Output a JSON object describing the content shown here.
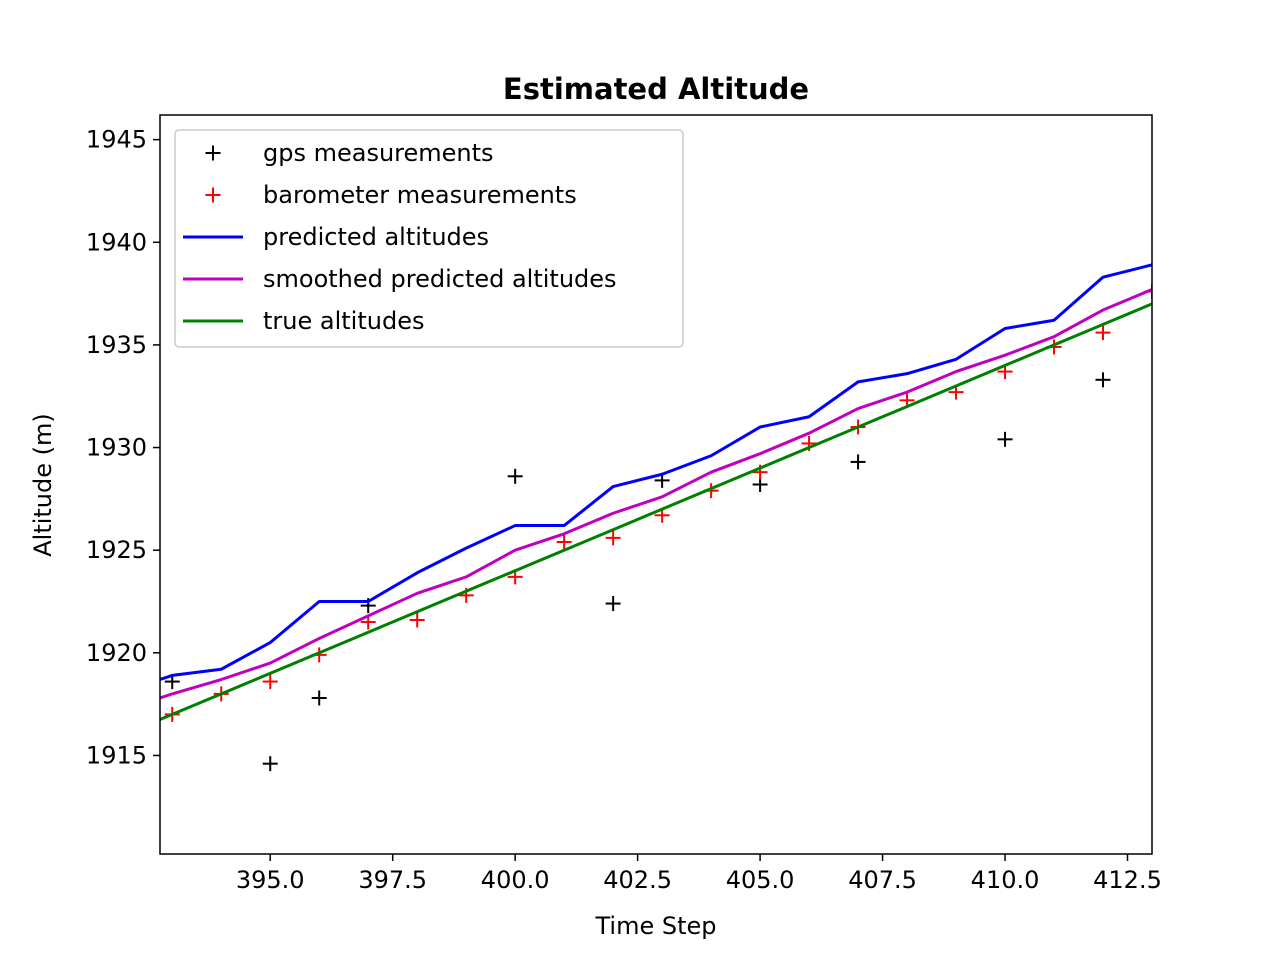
{
  "chart_data": {
    "type": "line",
    "title": "Estimated Altitude",
    "xlabel": "Time Step",
    "ylabel": "Altitude (m)",
    "xlim": [
      392.75,
      413.0
    ],
    "ylim": [
      1910.2,
      1946.2
    ],
    "xticks": [
      395.0,
      397.5,
      400.0,
      402.5,
      405.0,
      407.5,
      410.0,
      412.5
    ],
    "xtick_labels": [
      "395.0",
      "397.5",
      "400.0",
      "402.5",
      "405.0",
      "407.5",
      "410.0",
      "412.5"
    ],
    "yticks": [
      1915,
      1920,
      1925,
      1930,
      1935,
      1940,
      1945
    ],
    "ytick_labels": [
      "1915",
      "1920",
      "1925",
      "1930",
      "1935",
      "1940",
      "1945"
    ],
    "grid": false,
    "legend_position": "upper-left",
    "series": [
      {
        "name": "gps measurements",
        "kind": "marker",
        "color": "#000000",
        "x": [
          393,
          395,
          396,
          397,
          400,
          402,
          403,
          405,
          407,
          410,
          412
        ],
        "y": [
          1918.6,
          1914.6,
          1917.8,
          1922.3,
          1928.6,
          1922.4,
          1928.4,
          1928.2,
          1929.3,
          1930.4,
          1933.3
        ]
      },
      {
        "name": "barometer measurements",
        "kind": "marker",
        "color": "#ff0000",
        "x": [
          393,
          394,
          395,
          396,
          397,
          398,
          399,
          400,
          401,
          402,
          403,
          404,
          405,
          406,
          407,
          408,
          409,
          410,
          411,
          412,
          413
        ],
        "y": [
          1917.0,
          1918.0,
          1918.6,
          1919.9,
          1921.5,
          1921.6,
          1922.8,
          1923.7,
          1925.4,
          1925.6,
          1926.7,
          1927.9,
          1928.8,
          1930.2,
          1931.0,
          1932.3,
          1932.7,
          1933.7,
          1934.9,
          1935.6,
          1937.6
        ]
      },
      {
        "name": "predicted altitudes",
        "kind": "line",
        "color": "#0000ff",
        "x": [
          392.75,
          393,
          394,
          395,
          396,
          397,
          398,
          399,
          400,
          401,
          402,
          403,
          404,
          405,
          406,
          407,
          408,
          409,
          410,
          411,
          412,
          413
        ],
        "y": [
          1918.7,
          1918.9,
          1919.2,
          1920.5,
          1922.5,
          1922.5,
          1923.9,
          1925.1,
          1926.2,
          1926.2,
          1928.1,
          1928.7,
          1929.6,
          1931.0,
          1931.5,
          1933.2,
          1933.6,
          1934.3,
          1935.8,
          1936.2,
          1938.3,
          1938.9
        ]
      },
      {
        "name": "smoothed predicted altitudes",
        "kind": "line",
        "color": "#bf00bf",
        "x": [
          392.75,
          393,
          394,
          395,
          396,
          397,
          398,
          399,
          400,
          401,
          402,
          403,
          404,
          405,
          406,
          407,
          408,
          409,
          410,
          411,
          412,
          413
        ],
        "y": [
          1917.8,
          1918.0,
          1918.7,
          1919.5,
          1920.7,
          1921.8,
          1922.9,
          1923.7,
          1925.0,
          1925.8,
          1926.8,
          1927.6,
          1928.8,
          1929.7,
          1930.7,
          1931.9,
          1932.7,
          1933.7,
          1934.5,
          1935.4,
          1936.7,
          1937.7
        ]
      },
      {
        "name": "true altitudes",
        "kind": "line",
        "color": "#008000",
        "x": [
          392.75,
          413
        ],
        "y": [
          1916.75,
          1937.0
        ]
      }
    ]
  }
}
